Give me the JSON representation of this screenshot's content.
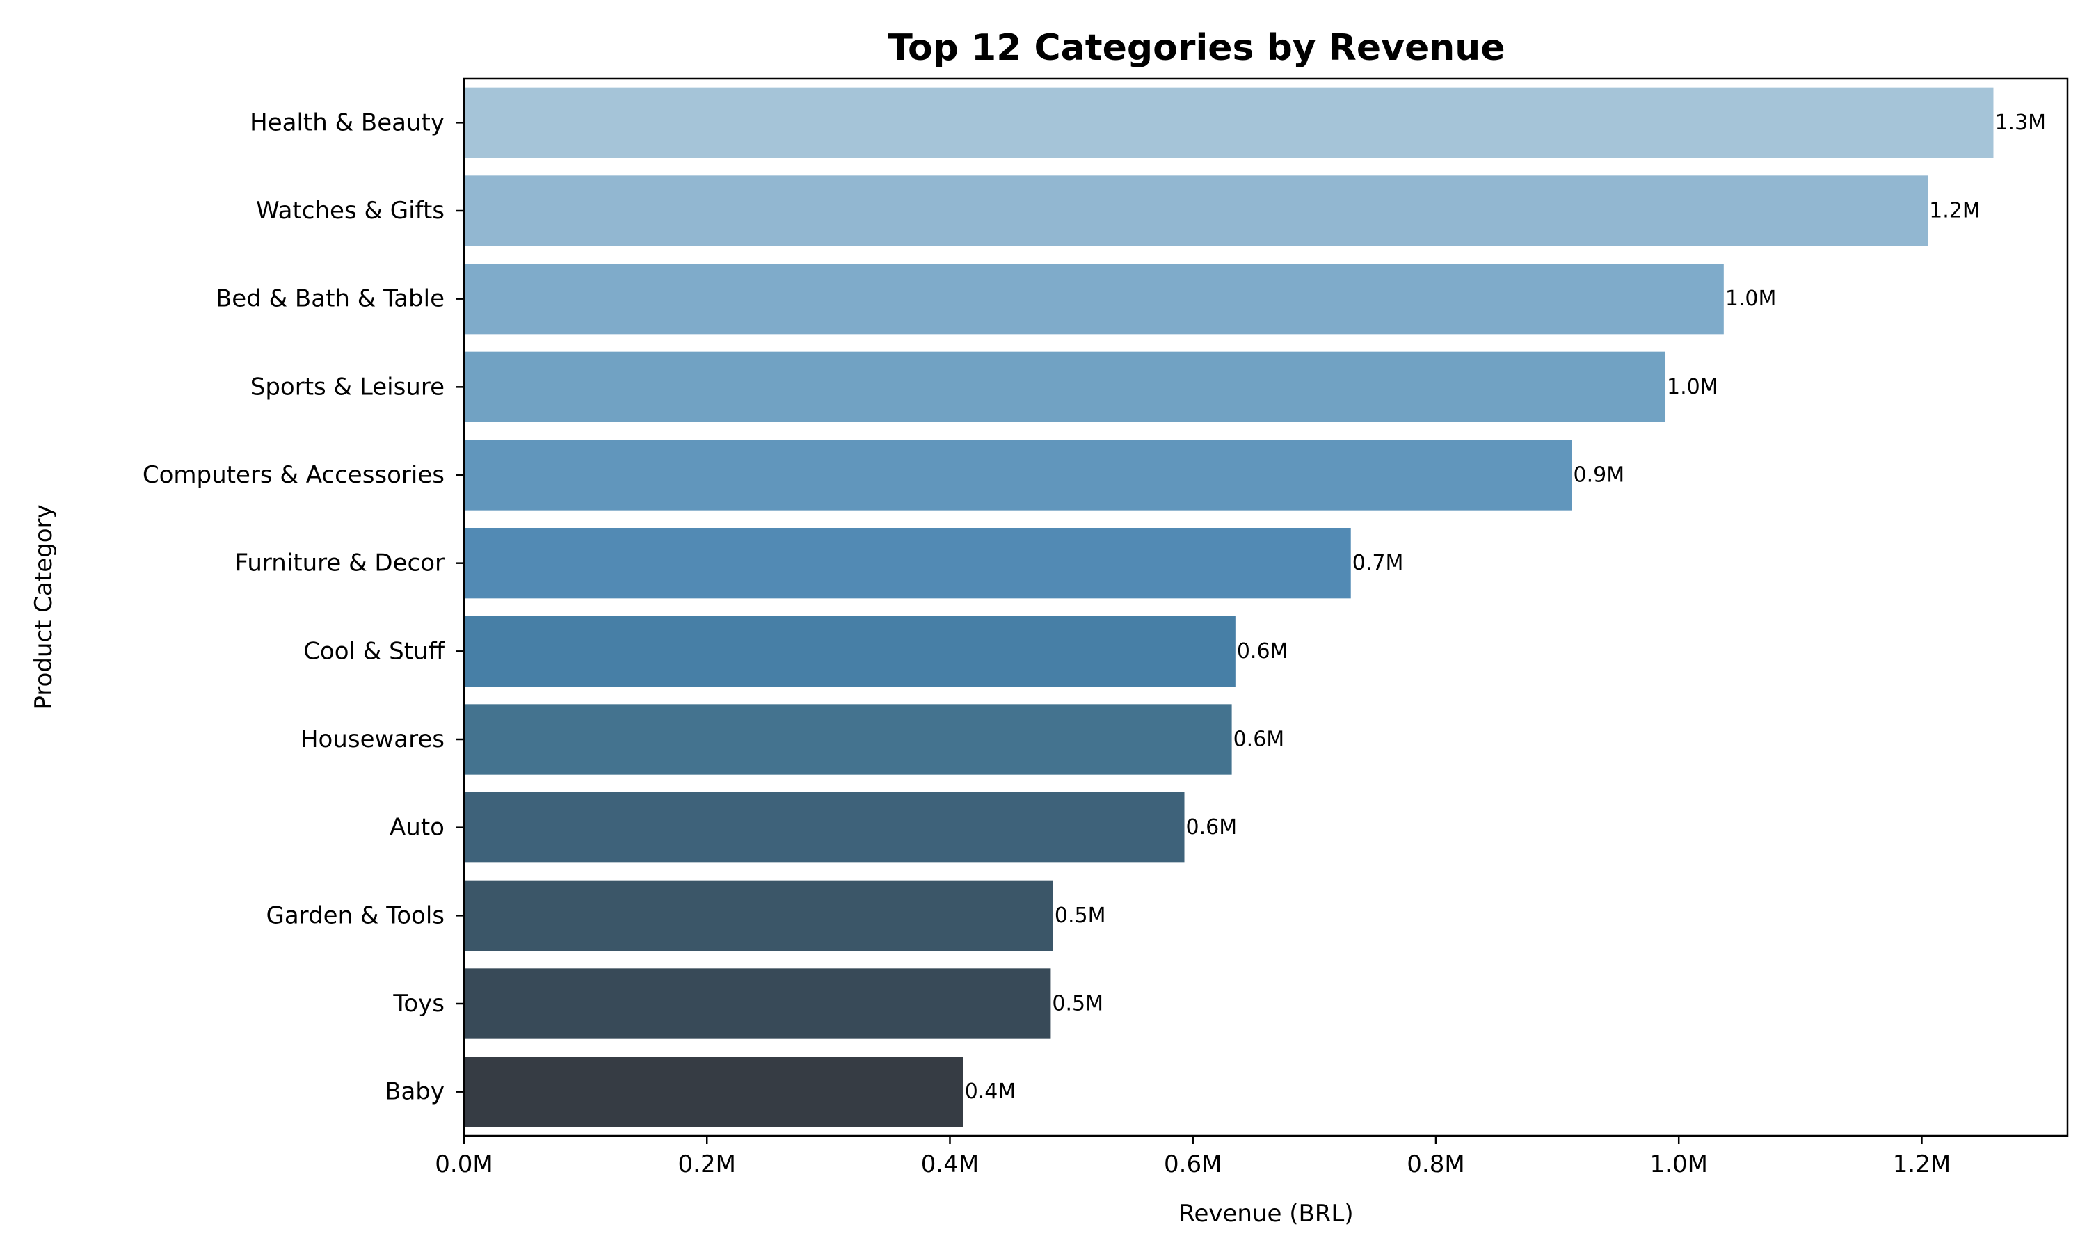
{
  "chart_data": {
    "type": "bar",
    "orientation": "horizontal",
    "title": "Top 12 Categories by Revenue",
    "xlabel": "Revenue (BRL)",
    "ylabel": "Product Category",
    "xlim": [
      0,
      1.32
    ],
    "x_unit": "M",
    "x_ticks": [
      0.0,
      0.2,
      0.4,
      0.6,
      0.8,
      1.0,
      1.2
    ],
    "x_tick_labels": [
      "0.0M",
      "0.2M",
      "0.4M",
      "0.6M",
      "0.8M",
      "1.0M",
      "1.2M"
    ],
    "grid": false,
    "legend": "none",
    "categories": [
      "Health & Beauty",
      "Watches & Gifts",
      "Bed & Bath & Table",
      "Sports & Leisure",
      "Computers & Accessories",
      "Furniture & Decor",
      "Cool & Stuff",
      "Housewares",
      "Auto",
      "Garden & Tools",
      "Toys",
      "Baby"
    ],
    "values": [
      1.259,
      1.205,
      1.037,
      0.989,
      0.912,
      0.73,
      0.635,
      0.632,
      0.593,
      0.485,
      0.483,
      0.411
    ],
    "data_labels": [
      "1.3M",
      "1.2M",
      "1.0M",
      "1.0M",
      "0.9M",
      "0.7M",
      "0.6M",
      "0.6M",
      "0.6M",
      "0.5M",
      "0.5M",
      "0.4M"
    ],
    "colors": [
      "#a5c4d8",
      "#92b7d1",
      "#7fabca",
      "#71a2c3",
      "#6196bc",
      "#528ab4",
      "#477fa6",
      "#44738f",
      "#3e627a",
      "#3b5668",
      "#384a58",
      "#363c44"
    ]
  }
}
